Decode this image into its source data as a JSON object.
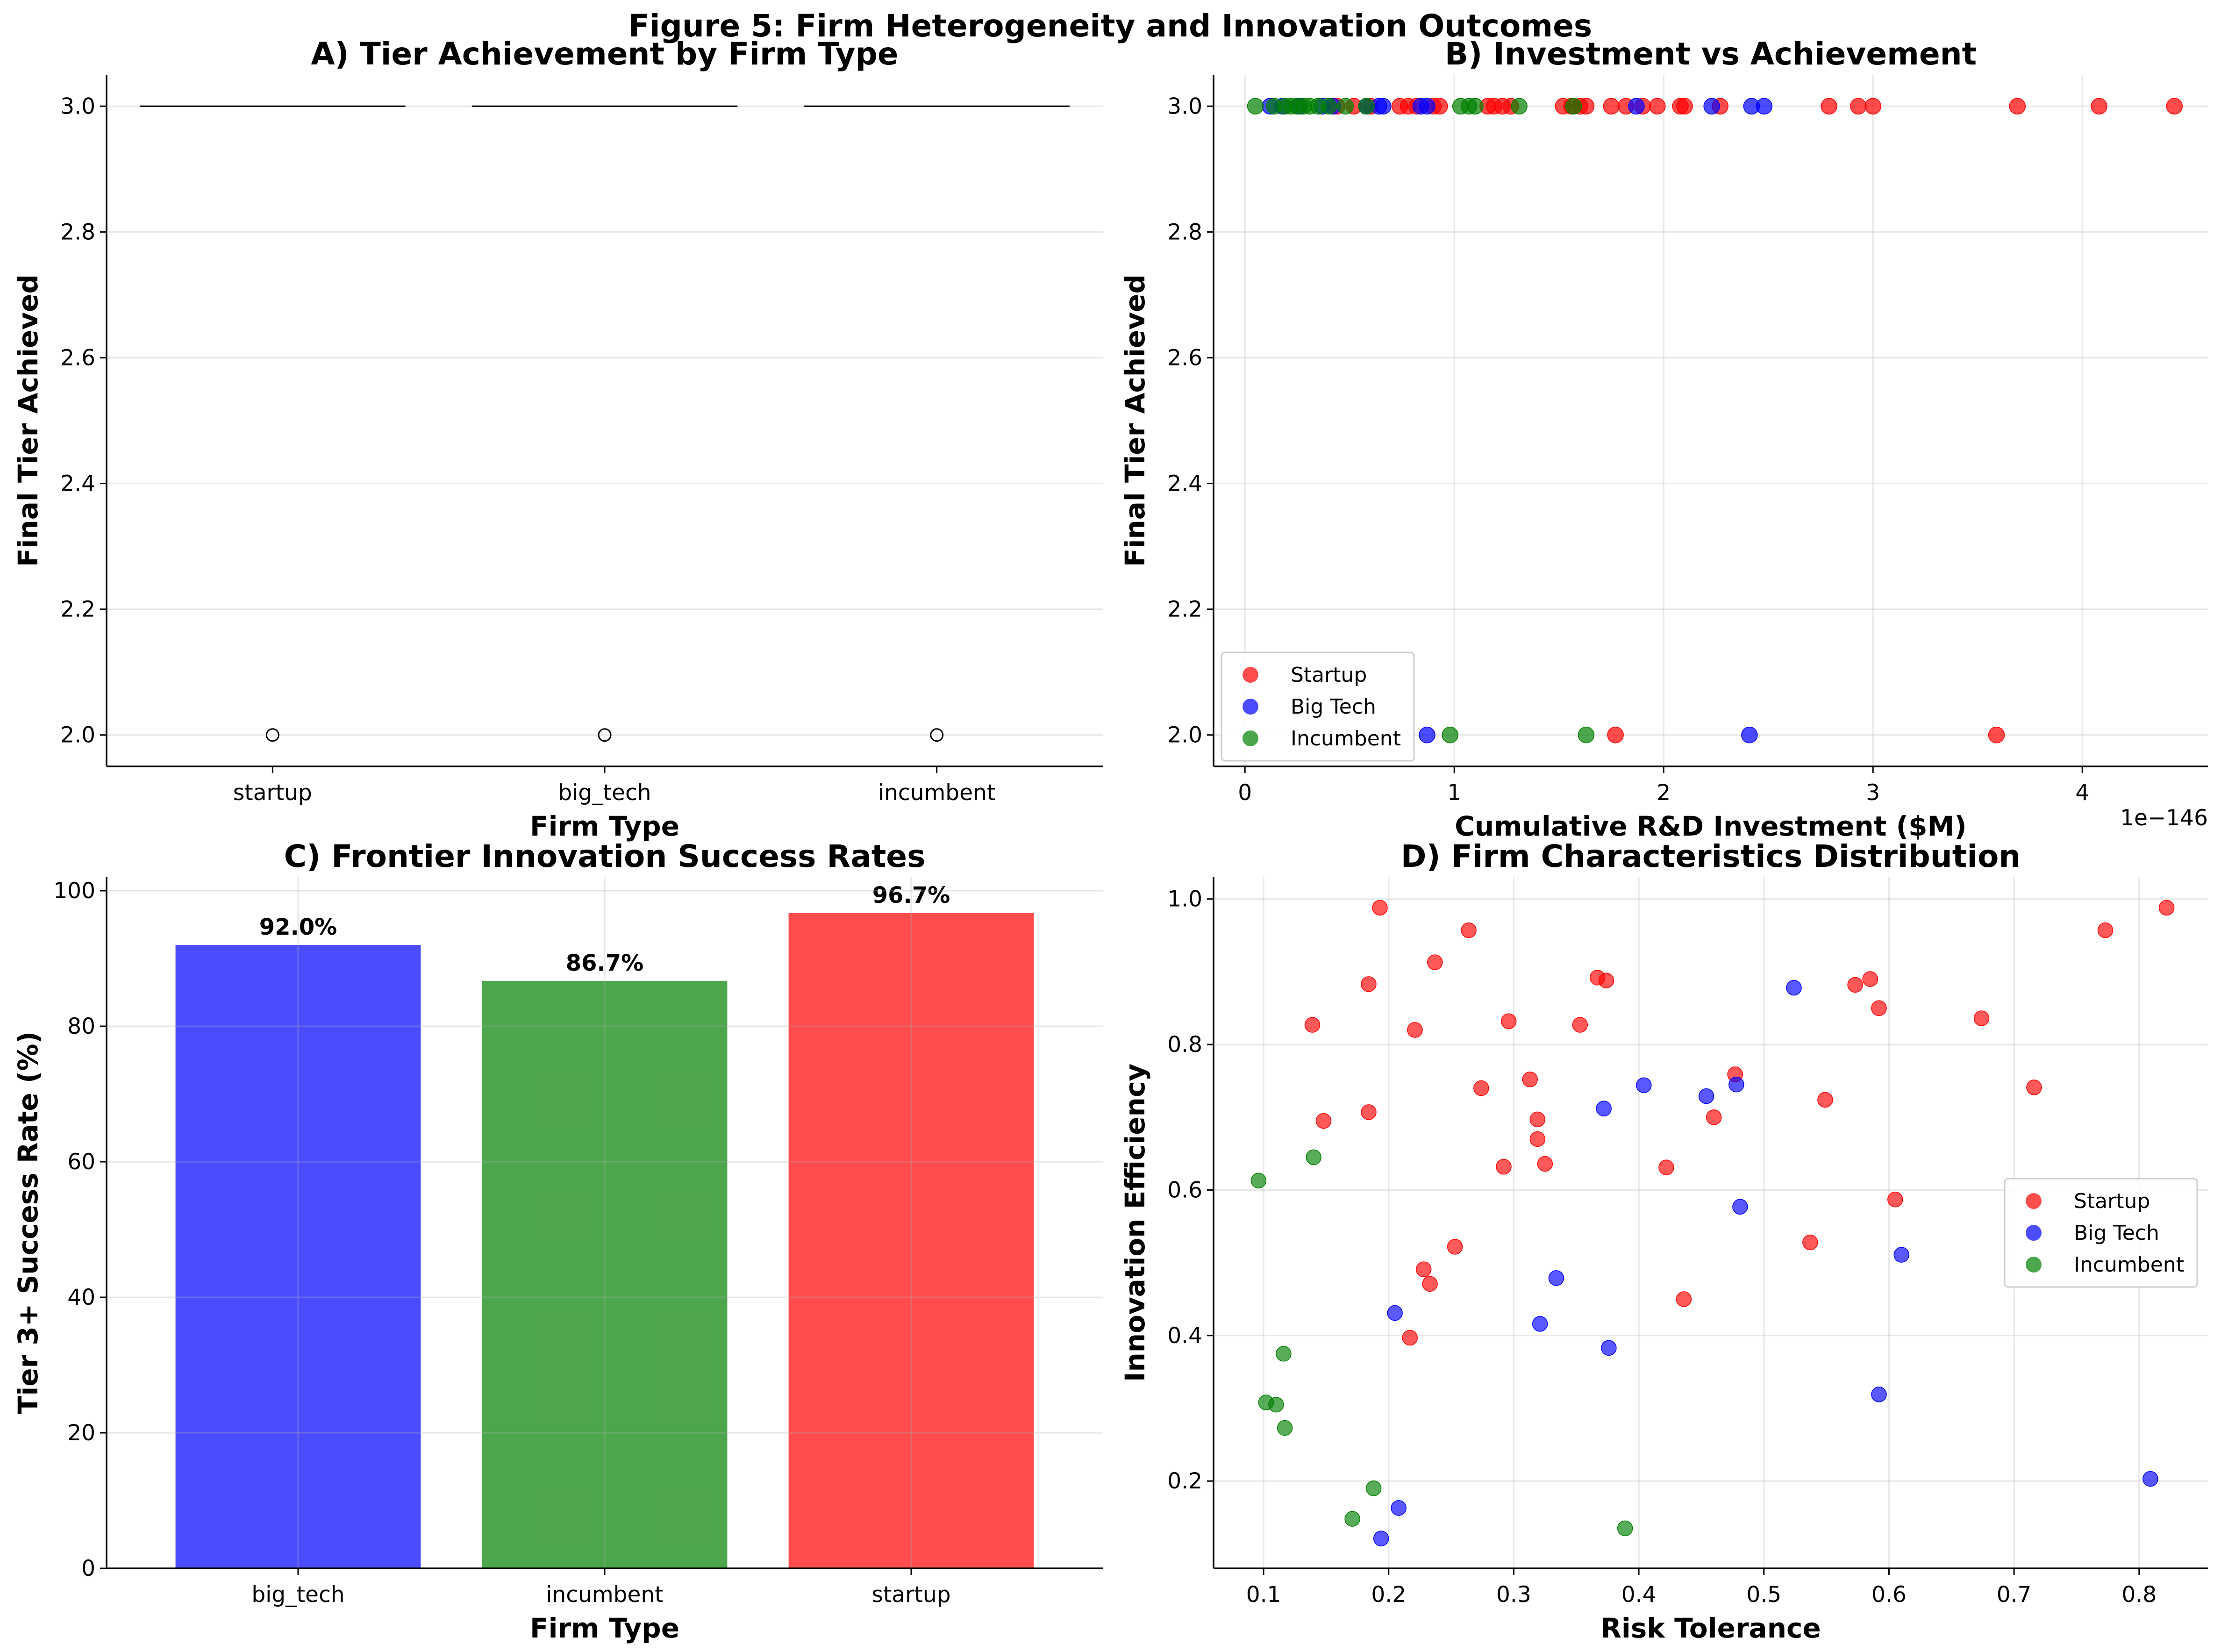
{
  "figure_title": "Figure 5: Firm Heterogeneity and Innovation Outcomes",
  "colors": {
    "startup": "#ff0000",
    "big_tech": "#0000ff",
    "incumbent": "#008000"
  },
  "chart_data": [
    {
      "panel": "A",
      "type": "box",
      "title": "A) Tier Achievement by Firm Type",
      "xlabel": "Firm Type",
      "ylabel": "Final Tier Achieved",
      "categories": [
        "startup",
        "big_tech",
        "incumbent"
      ],
      "ylim": [
        1.95,
        3.05
      ],
      "yticks": [
        "2.0",
        "2.2",
        "2.4",
        "2.6",
        "2.8",
        "3.0"
      ],
      "median": [
        3.0,
        3.0,
        3.0
      ],
      "outliers": [
        [
          2.0
        ],
        [
          2.0
        ],
        [
          2.0
        ]
      ],
      "grid": true
    },
    {
      "panel": "B",
      "type": "scatter",
      "title": "B) Investment vs Achievement",
      "xlabel": "Cumulative R&D Investment ($M)",
      "ylabel": "Final Tier Achieved",
      "x_offset_text": "1e−146",
      "xlim": [
        -0.15,
        4.6
      ],
      "ylim": [
        1.95,
        3.05
      ],
      "xticks": [
        "0",
        "1",
        "2",
        "3",
        "4"
      ],
      "yticks": [
        "2.0",
        "2.2",
        "2.4",
        "2.6",
        "2.8",
        "3.0"
      ],
      "legend": "lower-left",
      "grid": true,
      "series": [
        {
          "name": "Startup",
          "color": "#ff0000",
          "x": [
            0.44,
            0.52,
            0.6,
            0.74,
            0.78,
            0.82,
            0.9,
            0.93,
            1.16,
            1.19,
            1.23,
            1.27,
            1.52,
            1.56,
            1.6,
            1.63,
            1.75,
            1.82,
            1.9,
            1.97,
            2.08,
            2.1,
            2.27,
            2.79,
            2.93,
            3.0,
            3.69,
            4.08,
            4.44,
            1.77,
            3.59
          ],
          "y": [
            3,
            3,
            3,
            3,
            3,
            3,
            3,
            3,
            3,
            3,
            3,
            3,
            3,
            3,
            3,
            3,
            3,
            3,
            3,
            3,
            3,
            3,
            3,
            3,
            3,
            3,
            3,
            3,
            3,
            2,
            2
          ]
        },
        {
          "name": "Big Tech",
          "color": "#0000ff",
          "x": [
            0.12,
            0.18,
            0.26,
            0.37,
            0.42,
            0.58,
            0.64,
            0.66,
            0.84,
            0.87,
            1.87,
            2.23,
            2.42,
            2.48,
            0.87,
            2.41
          ],
          "y": [
            3,
            3,
            3,
            3,
            3,
            3,
            3,
            3,
            3,
            3,
            3,
            3,
            3,
            3,
            2,
            2
          ]
        },
        {
          "name": "Incumbent",
          "color": "#008000",
          "x": [
            0.05,
            0.14,
            0.19,
            0.22,
            0.25,
            0.28,
            0.31,
            0.35,
            0.4,
            0.48,
            0.58,
            1.03,
            1.07,
            1.1,
            1.31,
            1.57,
            0.98,
            1.63
          ],
          "y": [
            3,
            3,
            3,
            3,
            3,
            3,
            3,
            3,
            3,
            3,
            3,
            3,
            3,
            3,
            3,
            3,
            2,
            2
          ]
        }
      ]
    },
    {
      "panel": "C",
      "type": "bar",
      "title": "C) Frontier Innovation Success Rates",
      "xlabel": "Firm Type",
      "ylabel": "Tier 3+ Success Rate (%)",
      "categories": [
        "big_tech",
        "incumbent",
        "startup"
      ],
      "values": [
        92.0,
        86.7,
        96.7
      ],
      "value_labels": [
        "92.0%",
        "86.7%",
        "96.7%"
      ],
      "bar_colors": [
        "#0000ff",
        "#008000",
        "#ff0000"
      ],
      "ylim": [
        0,
        102
      ],
      "yticks": [
        "0",
        "20",
        "40",
        "60",
        "80",
        "100"
      ],
      "grid": true
    },
    {
      "panel": "D",
      "type": "scatter",
      "title": "D) Firm Characteristics Distribution",
      "xlabel": "Risk Tolerance",
      "ylabel": "Innovation Efficiency",
      "xlim": [
        0.06,
        0.855
      ],
      "ylim": [
        0.08,
        1.03
      ],
      "xticks": [
        "0.1",
        "0.2",
        "0.3",
        "0.4",
        "0.5",
        "0.6",
        "0.7",
        "0.8"
      ],
      "yticks": [
        "0.2",
        "0.4",
        "0.6",
        "0.8",
        "1.0"
      ],
      "legend": "center-right",
      "grid": true,
      "series": [
        {
          "name": "Startup",
          "color": "#ff0000",
          "x": [
            0.193,
            0.264,
            0.237,
            0.184,
            0.139,
            0.221,
            0.148,
            0.184,
            0.274,
            0.296,
            0.313,
            0.319,
            0.319,
            0.325,
            0.292,
            0.353,
            0.367,
            0.374,
            0.228,
            0.233,
            0.253,
            0.217,
            0.422,
            0.436,
            0.46,
            0.477,
            0.537,
            0.549,
            0.573,
            0.585,
            0.592,
            0.605,
            0.674,
            0.716,
            0.773,
            0.822
          ],
          "y": [
            0.988,
            0.957,
            0.913,
            0.883,
            0.827,
            0.82,
            0.695,
            0.707,
            0.74,
            0.832,
            0.752,
            0.697,
            0.67,
            0.636,
            0.632,
            0.827,
            0.892,
            0.888,
            0.491,
            0.471,
            0.522,
            0.397,
            0.631,
            0.45,
            0.7,
            0.759,
            0.528,
            0.724,
            0.882,
            0.89,
            0.85,
            0.587,
            0.836,
            0.741,
            0.957,
            0.988
          ]
        },
        {
          "name": "Big Tech",
          "color": "#0000ff",
          "x": [
            0.205,
            0.208,
            0.194,
            0.321,
            0.334,
            0.372,
            0.376,
            0.404,
            0.454,
            0.478,
            0.481,
            0.524,
            0.61,
            0.592,
            0.809
          ],
          "y": [
            0.431,
            0.163,
            0.121,
            0.416,
            0.479,
            0.712,
            0.383,
            0.744,
            0.729,
            0.745,
            0.577,
            0.878,
            0.511,
            0.319,
            0.203
          ]
        },
        {
          "name": "Incumbent",
          "color": "#008000",
          "x": [
            0.096,
            0.14,
            0.102,
            0.11,
            0.116,
            0.117,
            0.171,
            0.188,
            0.389
          ],
          "y": [
            0.613,
            0.645,
            0.308,
            0.305,
            0.375,
            0.273,
            0.148,
            0.19,
            0.135
          ]
        }
      ]
    }
  ]
}
